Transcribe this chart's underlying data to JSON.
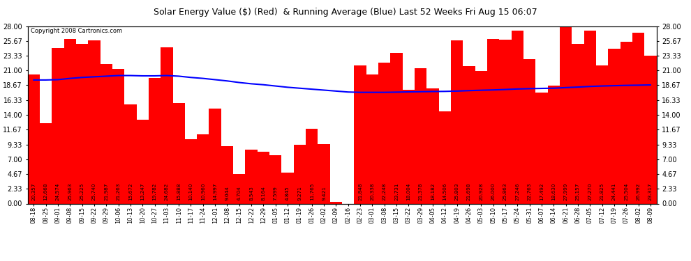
{
  "title": "Solar Energy Value ($) (Red)  & Running Average (Blue) Last 52 Weeks Fri Aug 15 06:07",
  "copyright": "Copyright 2008 Cartronics.com",
  "bar_color": "#ff0000",
  "line_color": "#0000ff",
  "background_color": "#ffffff",
  "plot_bg_color": "#ffffff",
  "grid_color": "#bbbbbb",
  "ylim": [
    0,
    28.0
  ],
  "yticks": [
    0.0,
    2.33,
    4.67,
    7.0,
    9.33,
    11.67,
    14.0,
    16.33,
    18.67,
    21.0,
    23.33,
    25.67,
    28.0
  ],
  "categories": [
    "08-18",
    "08-25",
    "09-01",
    "09-08",
    "09-15",
    "09-22",
    "09-29",
    "10-06",
    "10-13",
    "10-20",
    "10-27",
    "11-03",
    "11-10",
    "11-17",
    "11-24",
    "12-01",
    "12-08",
    "12-15",
    "12-22",
    "12-29",
    "01-05",
    "01-12",
    "01-19",
    "01-26",
    "02-02",
    "02-09",
    "02-16",
    "02-23",
    "03-01",
    "03-08",
    "03-15",
    "03-22",
    "03-29",
    "04-05",
    "04-12",
    "04-19",
    "04-26",
    "05-03",
    "05-10",
    "05-17",
    "05-24",
    "05-31",
    "06-07",
    "06-14",
    "06-21",
    "06-28",
    "07-05",
    "07-12",
    "07-19",
    "07-26",
    "08-02",
    "08-09"
  ],
  "values": [
    20.357,
    12.668,
    24.574,
    25.963,
    25.225,
    25.74,
    21.987,
    21.263,
    15.672,
    13.247,
    19.782,
    24.682,
    15.888,
    10.14,
    10.96,
    14.997,
    9.044,
    4.704,
    8.543,
    8.164,
    7.599,
    4.845,
    9.271,
    11.765,
    9.421,
    0.317,
    0.0,
    21.848,
    20.338,
    22.248,
    23.731,
    18.004,
    21.378,
    18.182,
    14.506,
    25.803,
    21.698,
    20.928,
    26.0,
    25.863,
    27.246,
    22.763,
    17.492,
    18.63,
    27.999,
    25.157,
    27.27,
    21.825,
    24.441,
    25.504,
    26.992,
    23.317
  ],
  "running_avg": [
    19.5,
    19.5,
    19.55,
    19.75,
    19.9,
    20.0,
    20.1,
    20.2,
    20.2,
    20.15,
    20.15,
    20.2,
    20.1,
    19.9,
    19.75,
    19.55,
    19.35,
    19.1,
    18.9,
    18.75,
    18.55,
    18.35,
    18.2,
    18.05,
    17.9,
    17.75,
    17.6,
    17.55,
    17.55,
    17.55,
    17.58,
    17.62,
    17.65,
    17.68,
    17.7,
    17.75,
    17.82,
    17.88,
    17.93,
    18.0,
    18.08,
    18.13,
    18.17,
    18.2,
    18.3,
    18.38,
    18.48,
    18.55,
    18.6,
    18.65,
    18.68,
    18.72
  ]
}
